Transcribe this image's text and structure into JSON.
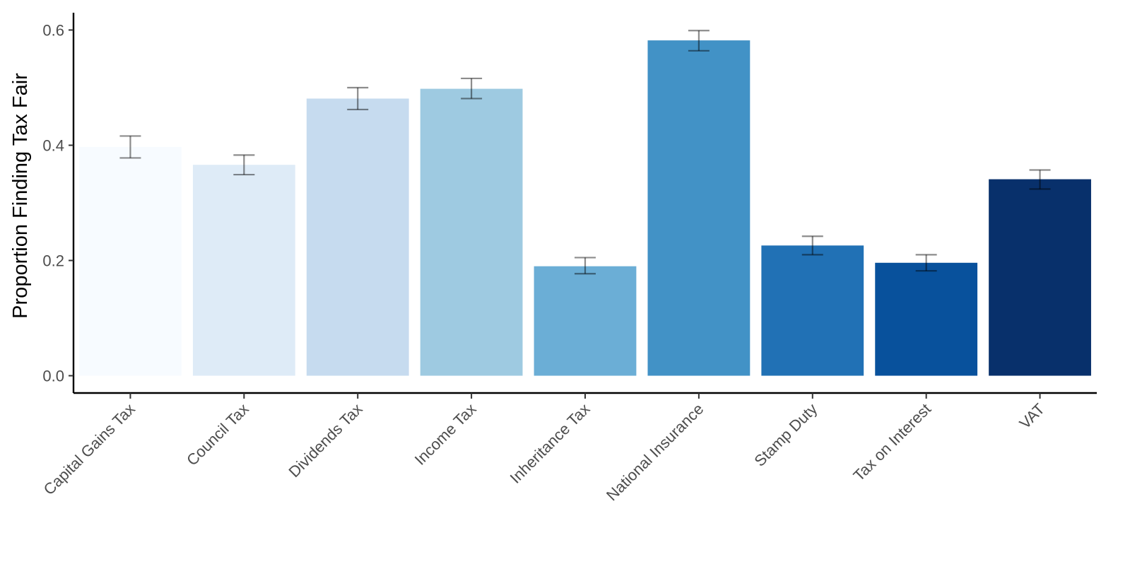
{
  "chart_data": {
    "type": "bar",
    "title": "",
    "xlabel": "",
    "ylabel": "Proportion Finding Tax Fair",
    "ylim": [
      -0.03,
      0.63
    ],
    "yticks": [
      0.0,
      0.2,
      0.4,
      0.6
    ],
    "ytick_labels": [
      "0.0",
      "0.2",
      "0.4",
      "0.6"
    ],
    "grid": false,
    "legend": "none",
    "categories": [
      "Capital Gains Tax",
      "Council Tax",
      "Dividends Tax",
      "Income Tax",
      "Inheritance Tax",
      "National Insurance",
      "Stamp Duty",
      "Tax on Interest",
      "VAT"
    ],
    "values": [
      0.397,
      0.366,
      0.481,
      0.498,
      0.19,
      0.582,
      0.226,
      0.196,
      0.341
    ],
    "error_low": [
      0.378,
      0.349,
      0.462,
      0.481,
      0.177,
      0.564,
      0.21,
      0.182,
      0.324
    ],
    "error_high": [
      0.416,
      0.383,
      0.5,
      0.516,
      0.205,
      0.599,
      0.242,
      0.21,
      0.357
    ],
    "colors": [
      "#f7fbff",
      "#deebf7",
      "#c6dbef",
      "#9ecae1",
      "#6baed6",
      "#4292c6",
      "#2171b5",
      "#08519c",
      "#08306b"
    ],
    "axis_color": "#000000",
    "errorbar_color": "#000000"
  }
}
